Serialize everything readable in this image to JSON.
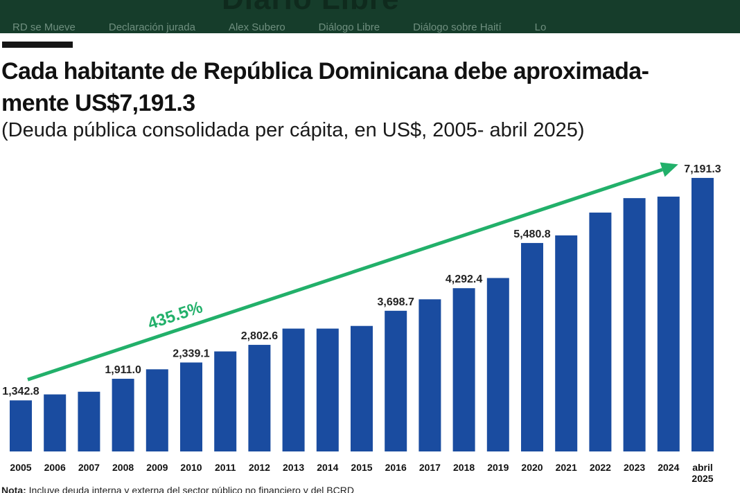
{
  "header": {
    "masthead": "Diario Libre",
    "nav": [
      "RD se Mueve",
      "Declaración jurada",
      "Alex Subero",
      "Diálogo Libre",
      "Diálogo sobre Haití",
      "Lo"
    ]
  },
  "chart_data": {
    "type": "bar",
    "title_line1": "Cada habitante de República Dominicana debe aproximada-",
    "title_line2": "mente US$7,191.3",
    "subtitle": "(Deuda pública consolidada per cápita, en US$, 2005- abril 2025)",
    "categories": [
      "2005",
      "2006",
      "2007",
      "2008",
      "2009",
      "2010",
      "2011",
      "2012",
      "2013",
      "2014",
      "2015",
      "2016",
      "2017",
      "2018",
      "2019",
      "2020",
      "2021",
      "2022",
      "2023",
      "2024",
      "abril 2025"
    ],
    "values": [
      1342.8,
      1500,
      1570,
      1911.0,
      2160,
      2339.1,
      2630,
      2802.6,
      3230,
      3230,
      3300,
      3698.7,
      4000,
      4292.4,
      4560,
      5480.8,
      5680,
      6280,
      6660,
      6700,
      7191.3
    ],
    "data_labels": [
      "1,342.8",
      "",
      "",
      "1,911.0",
      "",
      "2,339.1",
      "",
      "2,802.6",
      "",
      "",
      "",
      "3,698.7",
      "",
      "4,292.4",
      "",
      "5,480.8",
      "",
      "",
      "",
      "",
      "7,191.3"
    ],
    "growth_annotation": "435.5%",
    "ylim": [
      0,
      7500
    ],
    "grid": false,
    "bar_color": "#1a4ca0",
    "arrow_color": "#22b06a"
  },
  "note": {
    "prefix": "Nota:",
    "text": " Incluye deuda interna y externa del sector público no financiero y del BCRD"
  }
}
